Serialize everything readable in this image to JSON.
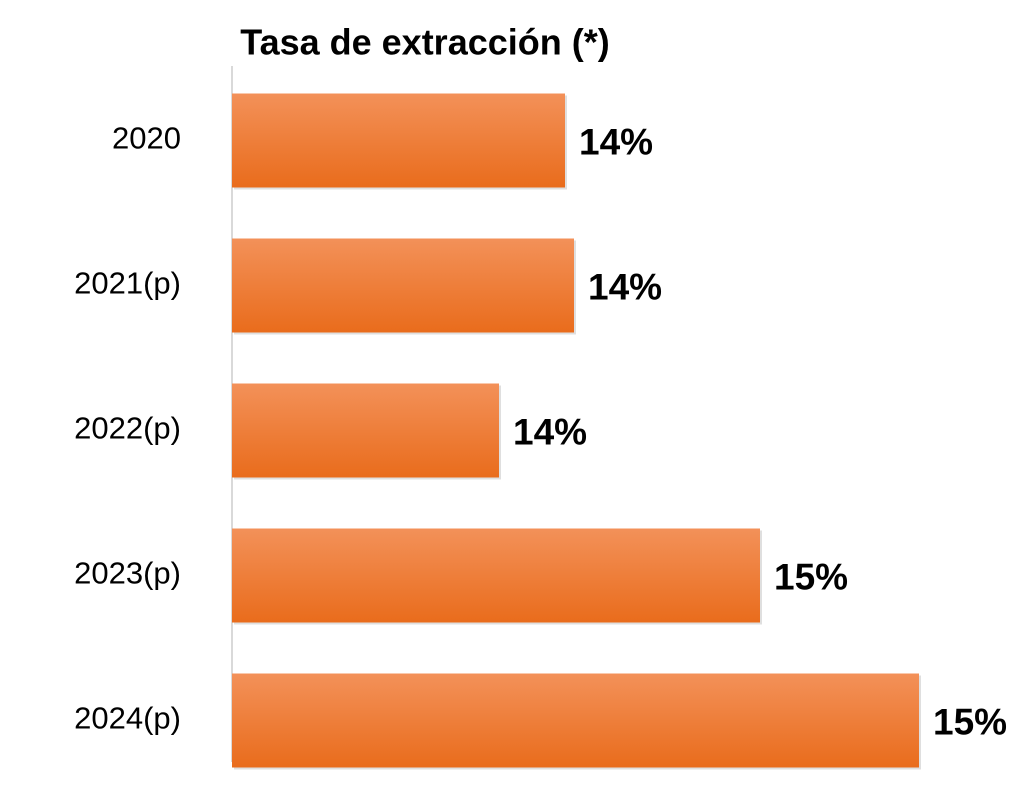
{
  "chart_data": {
    "type": "barh",
    "title": "Tasa de extracción (*)",
    "categories": [
      "2020",
      "2021(p)",
      "2022(p)",
      "2023(p)",
      "2024(p)"
    ],
    "values": [
      14.02,
      14.05,
      13.8,
      14.67,
      15.2
    ],
    "value_labels": [
      "14%",
      "14%",
      "14%",
      "15%",
      "15%"
    ],
    "color": "#ee7a2c",
    "xlim": [
      12.91,
      15.5
    ]
  }
}
